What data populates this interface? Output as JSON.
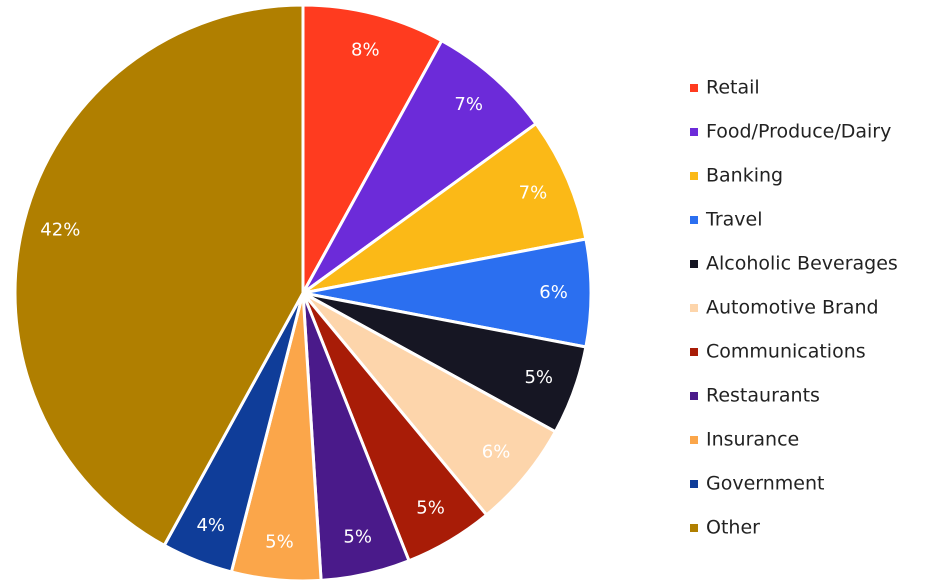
{
  "chart_data": {
    "type": "pie",
    "categories": [
      "Retail",
      "Food/Produce/Dairy",
      "Banking",
      "Travel",
      "Alcoholic Beverages",
      "Automotive Brand",
      "Communications",
      "Restaurants",
      "Insurance",
      "Government",
      "Other"
    ],
    "values": [
      8,
      7,
      7,
      6,
      5,
      6,
      5,
      5,
      5,
      4,
      42
    ],
    "value_labels": [
      "8%",
      "7%",
      "7%",
      "6%",
      "5%",
      "6%",
      "5%",
      "5%",
      "5%",
      "4%",
      "42%"
    ],
    "colors": [
      "#ff3b1f",
      "#6c2bd9",
      "#fbb917",
      "#2b6ff0",
      "#161623",
      "#fdd5ab",
      "#a81c07",
      "#4a1a8a",
      "#fba64a",
      "#0f3d99",
      "#b07f00"
    ],
    "legend": "right"
  }
}
